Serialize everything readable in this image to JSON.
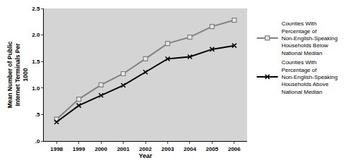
{
  "chart_data": {
    "type": "line",
    "x_label": "Year",
    "y_label": "Mean Number of Public Internet Terminals Per 1000",
    "categories": [
      "1998",
      "1999",
      "2000",
      "2001",
      "2002",
      "2003",
      "2004",
      "2005",
      "2006"
    ],
    "series": [
      {
        "name": "Counties With Percentage of Non-English-Speaking Households Below National Median",
        "color": "#808080",
        "marker": "square",
        "values": [
          0.41,
          0.79,
          1.06,
          1.27,
          1.55,
          1.84,
          1.96,
          2.16,
          2.28
        ]
      },
      {
        "name": "Counties With Percentage of Non-English-Speaking Households Above National Median",
        "color": "#000000",
        "marker": "x",
        "values": [
          0.36,
          0.67,
          0.86,
          1.05,
          1.3,
          1.55,
          1.59,
          1.73,
          1.8
        ]
      }
    ],
    "ylim": [
      0,
      2.5
    ],
    "yticks": [
      {
        "value": 0,
        "label": ".0"
      },
      {
        "value": 0.5,
        "label": ".5"
      },
      {
        "value": 1,
        "label": "1.0"
      },
      {
        "value": 1.5,
        "label": "1.5"
      },
      {
        "value": 2,
        "label": "2.0"
      },
      {
        "value": 2.5,
        "label": "2.5"
      }
    ],
    "grid": false,
    "legend": "right"
  }
}
